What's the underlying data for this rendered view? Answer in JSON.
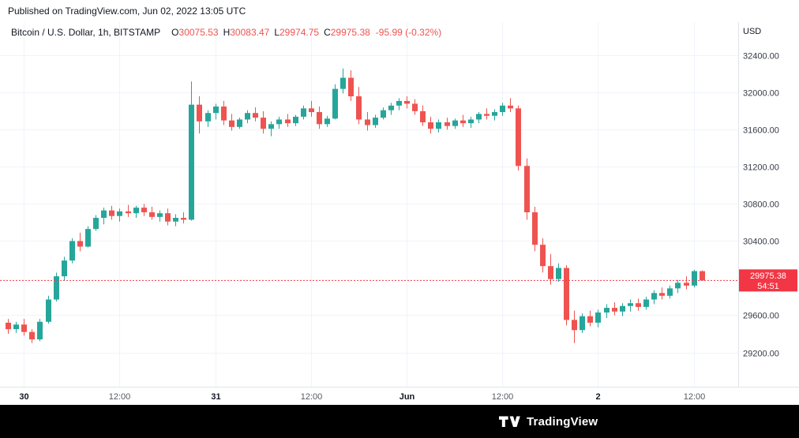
{
  "published": "Published on TradingView.com, Jun 02, 2022 13:05 UTC",
  "legend": {
    "title": "Bitcoin / U.S. Dollar, 1h, BITSTAMP",
    "ohlc": [
      {
        "label": "O",
        "value": "30075.53"
      },
      {
        "label": "H",
        "value": "30083.47"
      },
      {
        "label": "L",
        "value": "29974.75"
      },
      {
        "label": "C",
        "value": "29975.38"
      }
    ],
    "change": "-95.99 (-0.32%)"
  },
  "axis": {
    "currency": "USD"
  },
  "price_marker": {
    "price_label": "29975.38",
    "countdown": "54:51"
  },
  "footer": {
    "brand": "TradingView"
  },
  "colors": {
    "up": "#26a69a",
    "down": "#ef5350",
    "marker": "#f23645",
    "grid": "#f0f3fa",
    "border": "#e0e3eb",
    "axis_text": "#363a45",
    "axis_text_soft": "#555861",
    "text": "#131722",
    "badge_text": "#ffffff"
  },
  "chart_data": {
    "type": "candlestick",
    "title": "Bitcoin / U.S. Dollar, 1h, BITSTAMP",
    "symbol": "BTC/USD",
    "exchange": "BITSTAMP",
    "interval": "1h",
    "last_price": 29975.38,
    "open": 30075.53,
    "high": 30083.47,
    "low": 29974.75,
    "close": 29975.38,
    "change": -95.99,
    "change_pct": -0.32,
    "ylim": [
      28830,
      32760
    ],
    "price_ticks": [
      {
        "value": 32400,
        "label": "32400.00"
      },
      {
        "value": 32000,
        "label": "32000.00"
      },
      {
        "value": 31600,
        "label": "31600.00"
      },
      {
        "value": 31200,
        "label": "31200.00"
      },
      {
        "value": 30800,
        "label": "30800.00"
      },
      {
        "value": 30400,
        "label": "30400.00"
      },
      {
        "value": 29600,
        "label": "29600.00"
      },
      {
        "value": 29200,
        "label": "29200.00"
      }
    ],
    "time_ticks": [
      {
        "candle": 2,
        "label": "30",
        "strong": true
      },
      {
        "candle": 14,
        "label": "12:00",
        "strong": false
      },
      {
        "candle": 26,
        "label": "31",
        "strong": true
      },
      {
        "candle": 38,
        "label": "12:00",
        "strong": false
      },
      {
        "candle": 50,
        "label": "Jun",
        "strong": true
      },
      {
        "candle": 62,
        "label": "12:00",
        "strong": false
      },
      {
        "candle": 74,
        "label": "2",
        "strong": true
      },
      {
        "candle": 86,
        "label": "12:00",
        "strong": false
      }
    ],
    "candles": [
      [
        29520,
        29560,
        29400,
        29450
      ],
      [
        29450,
        29530,
        29410,
        29500
      ],
      [
        29500,
        29560,
        29380,
        29420
      ],
      [
        29420,
        29450,
        29300,
        29340
      ],
      [
        29340,
        29560,
        29320,
        29530
      ],
      [
        29530,
        29810,
        29510,
        29770
      ],
      [
        29770,
        30060,
        29750,
        30020
      ],
      [
        30020,
        30230,
        29970,
        30190
      ],
      [
        30190,
        30430,
        30160,
        30400
      ],
      [
        30400,
        30490,
        30290,
        30340
      ],
      [
        30340,
        30560,
        30330,
        30530
      ],
      [
        30530,
        30680,
        30510,
        30650
      ],
      [
        30650,
        30760,
        30580,
        30730
      ],
      [
        30730,
        30780,
        30630,
        30670
      ],
      [
        30670,
        30750,
        30610,
        30720
      ],
      [
        30720,
        30790,
        30660,
        30700
      ],
      [
        30700,
        30780,
        30650,
        30760
      ],
      [
        30760,
        30800,
        30670,
        30710
      ],
      [
        30710,
        30770,
        30630,
        30660
      ],
      [
        30660,
        30730,
        30610,
        30700
      ],
      [
        30700,
        30750,
        30570,
        30610
      ],
      [
        30610,
        30690,
        30560,
        30650
      ],
      [
        30650,
        30710,
        30590,
        30630
      ],
      [
        30630,
        32120,
        30620,
        31870
      ],
      [
        31870,
        31960,
        31560,
        31690
      ],
      [
        31690,
        31810,
        31630,
        31780
      ],
      [
        31780,
        31880,
        31710,
        31850
      ],
      [
        31850,
        31910,
        31650,
        31700
      ],
      [
        31700,
        31770,
        31590,
        31630
      ],
      [
        31630,
        31730,
        31610,
        31710
      ],
      [
        31710,
        31810,
        31670,
        31780
      ],
      [
        31780,
        31840,
        31690,
        31730
      ],
      [
        31730,
        31800,
        31560,
        31610
      ],
      [
        31610,
        31690,
        31530,
        31660
      ],
      [
        31660,
        31740,
        31610,
        31710
      ],
      [
        31710,
        31770,
        31630,
        31670
      ],
      [
        31670,
        31760,
        31640,
        31740
      ],
      [
        31740,
        31860,
        31710,
        31830
      ],
      [
        31830,
        31910,
        31740,
        31790
      ],
      [
        31790,
        31850,
        31610,
        31660
      ],
      [
        31660,
        31750,
        31630,
        31720
      ],
      [
        31720,
        32090,
        31710,
        32040
      ],
      [
        32040,
        32260,
        31990,
        32160
      ],
      [
        32160,
        32240,
        31910,
        31960
      ],
      [
        31960,
        32060,
        31660,
        31710
      ],
      [
        31710,
        31790,
        31590,
        31650
      ],
      [
        31650,
        31760,
        31620,
        31730
      ],
      [
        31730,
        31840,
        31710,
        31810
      ],
      [
        31810,
        31890,
        31760,
        31860
      ],
      [
        31860,
        31940,
        31810,
        31910
      ],
      [
        31910,
        31960,
        31830,
        31880
      ],
      [
        31880,
        31930,
        31760,
        31800
      ],
      [
        31800,
        31860,
        31640,
        31680
      ],
      [
        31680,
        31740,
        31560,
        31610
      ],
      [
        31610,
        31710,
        31570,
        31680
      ],
      [
        31680,
        31730,
        31600,
        31640
      ],
      [
        31640,
        31720,
        31610,
        31700
      ],
      [
        31700,
        31760,
        31630,
        31670
      ],
      [
        31670,
        31740,
        31620,
        31710
      ],
      [
        31710,
        31790,
        31670,
        31770
      ],
      [
        31770,
        31830,
        31710,
        31750
      ],
      [
        31750,
        31820,
        31700,
        31790
      ],
      [
        31790,
        31890,
        31750,
        31860
      ],
      [
        31860,
        31940,
        31790,
        31830
      ],
      [
        31830,
        31860,
        31160,
        31210
      ],
      [
        31210,
        31290,
        30630,
        30710
      ],
      [
        30710,
        30770,
        30290,
        30360
      ],
      [
        30360,
        30430,
        30060,
        30130
      ],
      [
        30130,
        30260,
        29930,
        29990
      ],
      [
        29990,
        30160,
        29960,
        30110
      ],
      [
        30110,
        30140,
        29490,
        29550
      ],
      [
        29550,
        29650,
        29300,
        29440
      ],
      [
        29440,
        29620,
        29410,
        29590
      ],
      [
        29590,
        29650,
        29480,
        29520
      ],
      [
        29520,
        29660,
        29470,
        29630
      ],
      [
        29630,
        29720,
        29570,
        29680
      ],
      [
        29680,
        29740,
        29600,
        29640
      ],
      [
        29640,
        29730,
        29590,
        29700
      ],
      [
        29700,
        29770,
        29640,
        29730
      ],
      [
        29730,
        29780,
        29650,
        29690
      ],
      [
        29690,
        29800,
        29660,
        29770
      ],
      [
        29770,
        29870,
        29720,
        29840
      ],
      [
        29840,
        29900,
        29770,
        29810
      ],
      [
        29810,
        29920,
        29780,
        29890
      ],
      [
        29890,
        29980,
        29840,
        29950
      ],
      [
        29950,
        30020,
        29880,
        29920
      ],
      [
        29920,
        30090,
        29900,
        30076
      ],
      [
        30075.53,
        30083.47,
        29974.75,
        29975.38
      ]
    ]
  }
}
